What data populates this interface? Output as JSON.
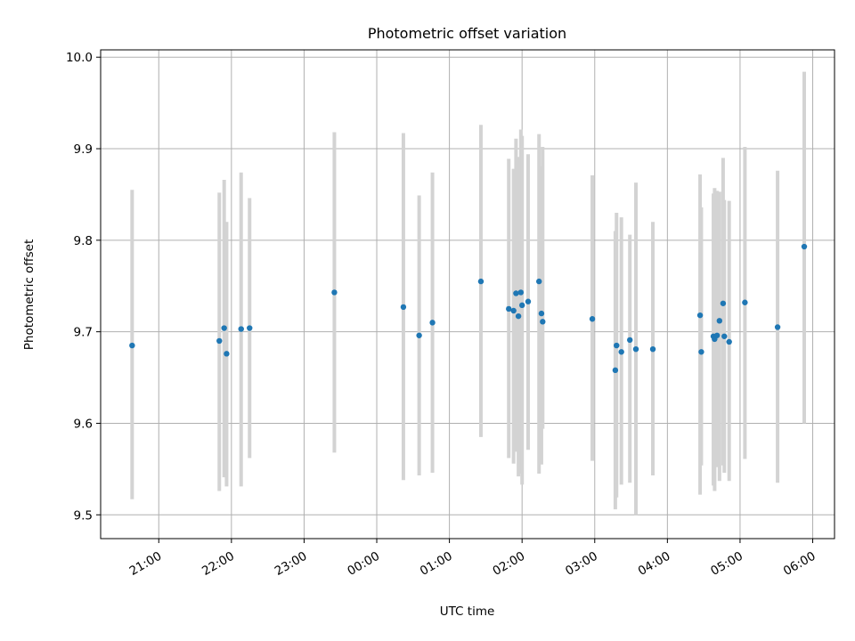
{
  "chart_data": {
    "type": "scatter",
    "title": "Photometric offset variation",
    "xlabel": "UTC time",
    "ylabel": "Photometric offset",
    "ylim": [
      9.474,
      10.008
    ],
    "xlim": [
      "20:12",
      "06:18"
    ],
    "grid": true,
    "legend": "none",
    "x_ticks": [
      "21:00",
      "22:00",
      "23:00",
      "00:00",
      "01:00",
      "02:00",
      "03:00",
      "04:00",
      "05:00",
      "06:00"
    ],
    "y_ticks": [
      "9.5",
      "9.6",
      "9.7",
      "9.8",
      "9.9",
      "10.0"
    ],
    "colors": {
      "point": "#1f77b4",
      "errorbar": "#d3d3d3",
      "grid": "#b0b0b0"
    },
    "series": [
      {
        "x": [
          "20:38",
          "21:50",
          "21:54",
          "21:56",
          "22:08",
          "22:15",
          "23:25",
          "00:22",
          "00:35",
          "00:46",
          "01:26",
          "01:49",
          "01:53",
          "01:55",
          "01:57",
          "01:59",
          "02:00",
          "02:05",
          "02:14",
          "02:16",
          "02:17",
          "02:58",
          "03:17",
          "03:18",
          "03:22",
          "03:29",
          "03:34",
          "03:48",
          "04:27",
          "04:28",
          "04:38",
          "04:39",
          "04:41",
          "04:43",
          "04:46",
          "04:47",
          "04:51",
          "05:04",
          "05:31",
          "05:53"
        ],
        "y": [
          9.685,
          9.69,
          9.704,
          9.676,
          9.703,
          9.704,
          9.743,
          9.727,
          9.696,
          9.71,
          9.755,
          9.725,
          9.723,
          9.742,
          9.717,
          9.743,
          9.729,
          9.733,
          9.755,
          9.72,
          9.711,
          9.714,
          9.658,
          9.685,
          9.678,
          9.691,
          9.681,
          9.681,
          9.718,
          9.678,
          9.695,
          9.692,
          9.696,
          9.712,
          9.731,
          9.695,
          9.689,
          9.732,
          9.705,
          9.793
        ],
        "yerr_low": [
          9.517,
          9.526,
          9.541,
          9.531,
          9.531,
          9.562,
          9.568,
          9.538,
          9.543,
          9.546,
          9.585,
          9.562,
          9.556,
          9.569,
          9.542,
          9.545,
          9.533,
          9.571,
          9.545,
          9.555,
          9.594,
          9.559,
          9.506,
          9.519,
          9.533,
          9.535,
          9.5,
          9.543,
          9.522,
          9.554,
          9.532,
          9.526,
          9.552,
          9.537,
          9.554,
          9.546,
          9.537,
          9.561,
          9.535,
          9.6
        ],
        "yerr_high": [
          9.855,
          9.852,
          9.866,
          9.82,
          9.874,
          9.846,
          9.918,
          9.917,
          9.849,
          9.874,
          9.926,
          9.889,
          9.878,
          9.911,
          9.891,
          9.921,
          9.914,
          9.894,
          9.916,
          9.881,
          9.902,
          9.871,
          9.81,
          9.83,
          9.825,
          9.806,
          9.863,
          9.82,
          9.872,
          9.836,
          9.851,
          9.857,
          9.854,
          9.853,
          9.89,
          9.844,
          9.843,
          9.902,
          9.876,
          9.984
        ]
      }
    ]
  }
}
